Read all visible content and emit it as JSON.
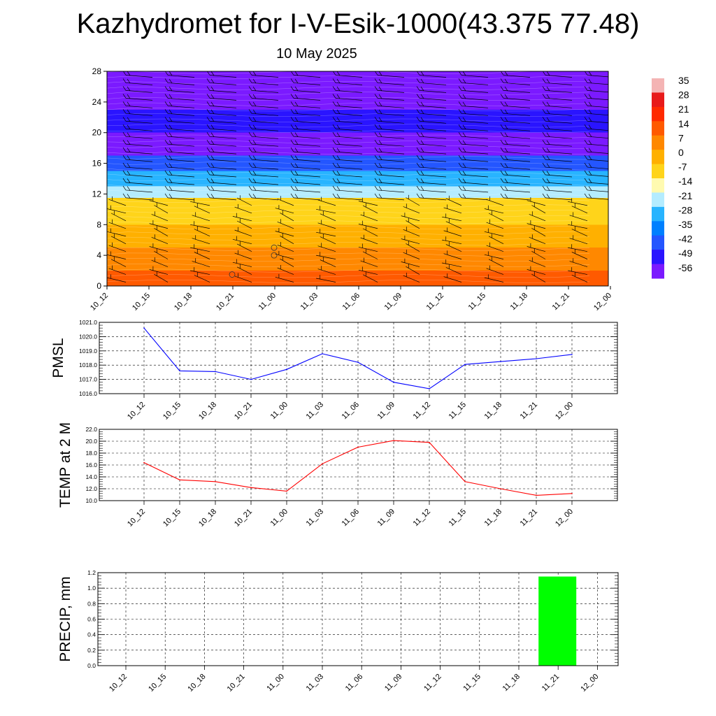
{
  "title": "Kazhydromet for I-V-Esik-1000(43.375 77.48)",
  "subtitle": "10 May 2025",
  "time_labels": [
    "10_12",
    "10_15",
    "10_18",
    "10_21",
    "11_00",
    "11_03",
    "11_06",
    "11_09",
    "11_12",
    "11_15",
    "11_18",
    "11_21",
    "12_00"
  ],
  "colors": {
    "pmsl_line": "#0000ff",
    "temp_line": "#ff0000",
    "precip_bar": "#00ff00",
    "wind_barbs": "#000000",
    "contours": "#ffffff"
  },
  "colorbar": {
    "labels": [
      "35",
      "28",
      "21",
      "14",
      "7",
      "0",
      "-7",
      "-14",
      "-21",
      "-28",
      "-35",
      "-42",
      "-49",
      "-56"
    ],
    "colors": [
      "#f4b4b4",
      "#e81a1a",
      "#ff2a00",
      "#ff5a00",
      "#ff8800",
      "#ffb000",
      "#ffd41a",
      "#fffab0",
      "#b4ecff",
      "#28b4ff",
      "#0080ff",
      "#2456ff",
      "#2a14ff",
      "#7b1aff"
    ]
  },
  "chart_data": [
    {
      "type": "heatmap",
      "title": "",
      "xlabel": "",
      "ylabel": "",
      "yticks": [
        "0",
        "4",
        "8",
        "12",
        "16",
        "20",
        "24",
        "28"
      ],
      "ylim": [
        0,
        28
      ],
      "x": [
        "10_12",
        "10_15",
        "10_18",
        "10_21",
        "11_00",
        "11_03",
        "11_06",
        "11_09",
        "11_12",
        "11_15",
        "11_18",
        "11_21",
        "12_00"
      ],
      "temperature_bands": [
        {
          "from_level": 0,
          "to_level": 2,
          "value": 14
        },
        {
          "from_level": 2,
          "to_level": 5,
          "value": 7
        },
        {
          "from_level": 5,
          "to_level": 8,
          "value": 0
        },
        {
          "from_level": 8,
          "to_level": 11.5,
          "value": -7
        },
        {
          "from_level": 11.5,
          "to_level": 13,
          "value": -21
        },
        {
          "from_level": 13,
          "to_level": 15,
          "value": -28
        },
        {
          "from_level": 15,
          "to_level": 17,
          "value": -42
        },
        {
          "from_level": 17,
          "to_level": 20,
          "value": -56
        },
        {
          "from_level": 20,
          "to_level": 23,
          "value": -49
        },
        {
          "from_level": 23,
          "to_level": 28,
          "value": -56
        }
      ],
      "overlay": "wind barbs",
      "grid": false
    },
    {
      "type": "line",
      "ylabel": "PMSL",
      "yticks": [
        "1016.0",
        "1017.0",
        "1018.0",
        "1019.0",
        "1020.0",
        "1021.0"
      ],
      "ylim": [
        1016.0,
        1021.0
      ],
      "x": [
        "10_12",
        "10_15",
        "10_18",
        "10_21",
        "11_00",
        "11_03",
        "11_06",
        "11_09",
        "11_12",
        "11_15",
        "11_18",
        "11_21",
        "12_00"
      ],
      "values": [
        1020.6,
        1017.6,
        1017.55,
        1017.0,
        1017.7,
        1018.8,
        1018.2,
        1016.8,
        1016.35,
        1018.05,
        1018.25,
        1018.45,
        1018.75
      ],
      "grid": true
    },
    {
      "type": "line",
      "ylabel": "TEMP at 2 M",
      "yticks": [
        "10.0",
        "12.0",
        "14.0",
        "16.0",
        "18.0",
        "20.0",
        "22.0"
      ],
      "ylim": [
        10.0,
        22.0
      ],
      "x": [
        "10_12",
        "10_15",
        "10_18",
        "10_21",
        "11_00",
        "11_03",
        "11_06",
        "11_09",
        "11_12",
        "11_15",
        "11_18",
        "11_21",
        "12_00"
      ],
      "values": [
        16.4,
        13.5,
        13.2,
        12.2,
        11.6,
        16.2,
        19.0,
        20.1,
        19.8,
        13.2,
        12.0,
        10.9,
        11.2
      ],
      "grid": true
    },
    {
      "type": "bar",
      "ylabel": "PRECIP, mm",
      "yticks": [
        "0.0",
        "0.2",
        "0.4",
        "0.6",
        "0.8",
        "1.0",
        "1.2"
      ],
      "ylim": [
        0.0,
        1.2
      ],
      "categories": [
        "10_12",
        "10_15",
        "10_18",
        "10_21",
        "11_00",
        "11_03",
        "11_06",
        "11_09",
        "11_12",
        "11_15",
        "11_18",
        "11_21",
        "12_00"
      ],
      "values": [
        0,
        0,
        0,
        0,
        0,
        0,
        0,
        0,
        0,
        0,
        0,
        1.15,
        0
      ],
      "grid": true
    }
  ]
}
